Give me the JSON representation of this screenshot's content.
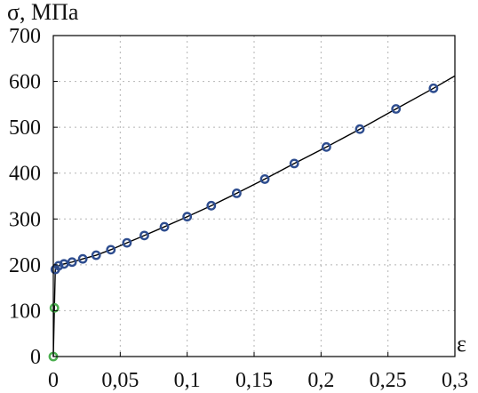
{
  "chart_data": {
    "type": "scatter",
    "title": "",
    "ylabel": "σ, МПа",
    "xlabel": "ε",
    "xlim": [
      0,
      0.3
    ],
    "ylim": [
      0,
      700
    ],
    "x_ticks": [
      "0",
      "0,05",
      "0,1",
      "0,15",
      "0,2",
      "0,25",
      "0,3"
    ],
    "y_ticks": [
      "0",
      "100",
      "200",
      "300",
      "400",
      "500",
      "600",
      "700"
    ],
    "grid": true,
    "series": [
      {
        "color": "#4caf50",
        "marker": "circle",
        "x": [
          0.0,
          0.0008
        ],
        "y": [
          0,
          106
        ]
      },
      {
        "color": "#2e4d8f",
        "marker": "circle",
        "x": [
          0.0015,
          0.004,
          0.008,
          0.014,
          0.022,
          0.032,
          0.043,
          0.055,
          0.068,
          0.083,
          0.1,
          0.118,
          0.137,
          0.158,
          0.18,
          0.204,
          0.229,
          0.256,
          0.284
        ],
        "y": [
          190,
          198,
          202,
          206,
          213,
          221,
          233,
          248,
          264,
          283,
          305,
          329,
          356,
          387,
          421,
          457,
          496,
          540,
          585
        ]
      },
      {
        "type": "line",
        "color": "#000000",
        "x": [
          0.0,
          0.0008,
          0.0015,
          0.004,
          0.008,
          0.014,
          0.022,
          0.032,
          0.043,
          0.055,
          0.068,
          0.083,
          0.1,
          0.118,
          0.137,
          0.158,
          0.18,
          0.204,
          0.229,
          0.256,
          0.284,
          0.3
        ],
        "y": [
          0,
          106,
          190,
          198,
          202,
          206,
          213,
          221,
          233,
          248,
          264,
          283,
          305,
          329,
          356,
          387,
          421,
          457,
          496,
          540,
          585,
          612
        ]
      }
    ]
  }
}
